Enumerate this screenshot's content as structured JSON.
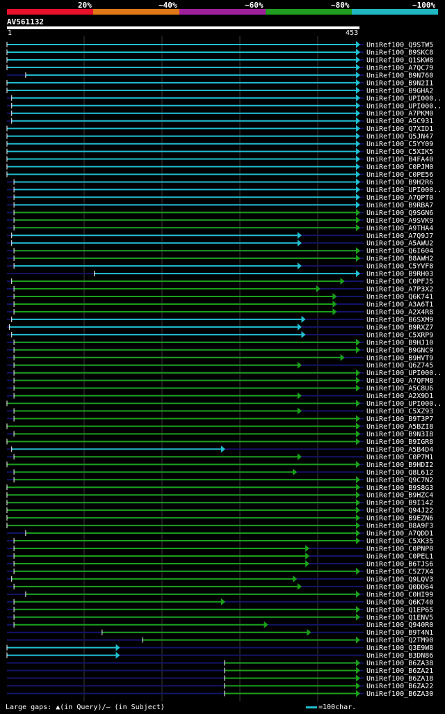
{
  "legend": {
    "labels": [
      "20%",
      "~40%",
      "~60%",
      "~80%",
      "~100%"
    ],
    "colors": [
      "#e8102a",
      "#e07818",
      "#a0209c",
      "#209c20",
      "#20b8c0"
    ]
  },
  "query": {
    "id": "AV561132",
    "start": "1",
    "end": "453",
    "length": 453
  },
  "footer": {
    "gaps_label": "Large gaps: ▲(in Query)/– (in Subject)",
    "scale_label": "=100char."
  },
  "colors": {
    "line": "#20c0d0",
    "cyan": "#20c0d0",
    "green": "#1aa01a",
    "background_line": "#14146a",
    "grid": "#3a3a3a"
  },
  "hits": [
    {
      "name": "UniRef100_Q9STW5",
      "s": 1,
      "e": 453,
      "c": "cyan"
    },
    {
      "name": "UniRef100_B9SKC8",
      "s": 1,
      "e": 453,
      "c": "cyan"
    },
    {
      "name": "UniRef100_Q1SKW8",
      "s": 1,
      "e": 453,
      "c": "cyan"
    },
    {
      "name": "UniRef100_A7QC79",
      "s": 1,
      "e": 453,
      "c": "cyan"
    },
    {
      "name": "UniRef100_B9N760",
      "s": 25,
      "e": 453,
      "c": "cyan"
    },
    {
      "name": "UniRef100_B9N2I1",
      "s": 1,
      "e": 453,
      "c": "cyan"
    },
    {
      "name": "UniRef100_B9GHA2",
      "s": 1,
      "e": 453,
      "c": "cyan"
    },
    {
      "name": "UniRef100_UPI000..",
      "s": 7,
      "e": 453,
      "c": "cyan"
    },
    {
      "name": "UniRef100_UPI000..",
      "s": 7,
      "e": 453,
      "c": "cyan"
    },
    {
      "name": "UniRef100_A7PKM0",
      "s": 7,
      "e": 453,
      "c": "cyan"
    },
    {
      "name": "UniRef100_A5C931",
      "s": 7,
      "e": 453,
      "c": "cyan"
    },
    {
      "name": "UniRef100_Q7XID1",
      "s": 1,
      "e": 453,
      "c": "cyan"
    },
    {
      "name": "UniRef100_Q5JN47",
      "s": 1,
      "e": 453,
      "c": "cyan"
    },
    {
      "name": "UniRef100_C5YY09",
      "s": 1,
      "e": 453,
      "c": "cyan"
    },
    {
      "name": "UniRef100_C5XIK5",
      "s": 1,
      "e": 453,
      "c": "cyan"
    },
    {
      "name": "UniRef100_B4FA40",
      "s": 1,
      "e": 453,
      "c": "cyan"
    },
    {
      "name": "UniRef100_C0PJM0",
      "s": 1,
      "e": 453,
      "c": "cyan"
    },
    {
      "name": "UniRef100_C0PE56",
      "s": 1,
      "e": 453,
      "c": "cyan"
    },
    {
      "name": "UniRef100_B9H2R6",
      "s": 10,
      "e": 453,
      "c": "cyan"
    },
    {
      "name": "UniRef100_UPI000..",
      "s": 10,
      "e": 453,
      "c": "cyan"
    },
    {
      "name": "UniRef100_A7QPT0",
      "s": 10,
      "e": 453,
      "c": "cyan"
    },
    {
      "name": "UniRef100_B9RBA7",
      "s": 10,
      "e": 453,
      "c": "cyan"
    },
    {
      "name": "UniRef100_Q9SGN6",
      "s": 10,
      "e": 453,
      "c": "green"
    },
    {
      "name": "UniRef100_A9SVK9",
      "s": 10,
      "e": 453,
      "c": "green"
    },
    {
      "name": "UniRef100_A9THA4",
      "s": 10,
      "e": 453,
      "c": "green"
    },
    {
      "name": "UniRef100_A7Q9J7",
      "s": 7,
      "e": 378,
      "c": "cyan"
    },
    {
      "name": "UniRef100_A5AWU2",
      "s": 7,
      "e": 378,
      "c": "cyan"
    },
    {
      "name": "UniRef100_Q6I604",
      "s": 10,
      "e": 453,
      "c": "green"
    },
    {
      "name": "UniRef100_B8AWH2",
      "s": 10,
      "e": 453,
      "c": "green"
    },
    {
      "name": "UniRef100_C5YVF8",
      "s": 10,
      "e": 378,
      "c": "cyan"
    },
    {
      "name": "UniRef100_B9RH03",
      "s": 113,
      "e": 453,
      "c": "cyan"
    },
    {
      "name": "UniRef100_C0PFJ5",
      "s": 7,
      "e": 433,
      "c": "green"
    },
    {
      "name": "UniRef100_A7P3X2",
      "s": 10,
      "e": 402,
      "c": "green"
    },
    {
      "name": "UniRef100_Q6K741",
      "s": 10,
      "e": 423,
      "c": "green"
    },
    {
      "name": "UniRef100_A3A6T1",
      "s": 10,
      "e": 423,
      "c": "green"
    },
    {
      "name": "UniRef100_A2X4R8",
      "s": 10,
      "e": 423,
      "c": "green"
    },
    {
      "name": "UniRef100_B6SXM9",
      "s": 7,
      "e": 383,
      "c": "cyan"
    },
    {
      "name": "UniRef100_B9RXZ7",
      "s": 4,
      "e": 378,
      "c": "cyan"
    },
    {
      "name": "UniRef100_C5XRP9",
      "s": 7,
      "e": 383,
      "c": "cyan"
    },
    {
      "name": "UniRef100_B9HJ10",
      "s": 10,
      "e": 453,
      "c": "green"
    },
    {
      "name": "UniRef100_B9GNC9",
      "s": 10,
      "e": 453,
      "c": "green"
    },
    {
      "name": "UniRef100_B9HVT9",
      "s": 10,
      "e": 433,
      "c": "green"
    },
    {
      "name": "UniRef100_Q6Z745",
      "s": 10,
      "e": 378,
      "c": "green"
    },
    {
      "name": "UniRef100_UPI000..",
      "s": 10,
      "e": 453,
      "c": "green"
    },
    {
      "name": "UniRef100_A7QFM8",
      "s": 10,
      "e": 453,
      "c": "green"
    },
    {
      "name": "UniRef100_A5C8U6",
      "s": 10,
      "e": 453,
      "c": "green"
    },
    {
      "name": "UniRef100_A2X9D1",
      "s": 10,
      "e": 378,
      "c": "green"
    },
    {
      "name": "UniRef100_UPI000..",
      "s": 1,
      "e": 453,
      "c": "green"
    },
    {
      "name": "UniRef100_C5XZ93",
      "s": 10,
      "e": 378,
      "c": "green"
    },
    {
      "name": "UniRef100_B9T3P7",
      "s": 10,
      "e": 453,
      "c": "green"
    },
    {
      "name": "UniRef100_A5BZI8",
      "s": 1,
      "e": 453,
      "c": "green"
    },
    {
      "name": "UniRef100_B9N3I8",
      "s": 10,
      "e": 453,
      "c": "green"
    },
    {
      "name": "UniRef100_B9IGR8",
      "s": 1,
      "e": 453,
      "c": "green"
    },
    {
      "name": "UniRef100_A5B4D4",
      "s": 7,
      "e": 280,
      "c": "cyan"
    },
    {
      "name": "UniRef100_C0P7M1",
      "s": 10,
      "e": 378,
      "c": "green"
    },
    {
      "name": "UniRef100_B9HDI2",
      "s": 1,
      "e": 453,
      "c": "green"
    },
    {
      "name": "UniRef100_Q8L612",
      "s": 10,
      "e": 372,
      "c": "green"
    },
    {
      "name": "UniRef100_Q9C7N2",
      "s": 10,
      "e": 453,
      "c": "green"
    },
    {
      "name": "UniRef100_B9S8G3",
      "s": 1,
      "e": 453,
      "c": "green"
    },
    {
      "name": "UniRef100_B9HZC4",
      "s": 1,
      "e": 453,
      "c": "green"
    },
    {
      "name": "UniRef100_B9I142",
      "s": 1,
      "e": 453,
      "c": "green"
    },
    {
      "name": "UniRef100_Q94J22",
      "s": 1,
      "e": 453,
      "c": "green"
    },
    {
      "name": "UniRef100_B9EZN6",
      "s": 1,
      "e": 453,
      "c": "green"
    },
    {
      "name": "UniRef100_B8A9F3",
      "s": 1,
      "e": 453,
      "c": "green"
    },
    {
      "name": "UniRef100_A7QDD1",
      "s": 25,
      "e": 453,
      "c": "green"
    },
    {
      "name": "UniRef100_C5XK35",
      "s": 10,
      "e": 453,
      "c": "green"
    },
    {
      "name": "UniRef100_C0PNP0",
      "s": 10,
      "e": 388,
      "c": "green"
    },
    {
      "name": "UniRef100_C0PEL1",
      "s": 10,
      "e": 388,
      "c": "green"
    },
    {
      "name": "UniRef100_B6TJS6",
      "s": 10,
      "e": 388,
      "c": "green"
    },
    {
      "name": "UniRef100_C5Z7X4",
      "s": 10,
      "e": 453,
      "c": "green"
    },
    {
      "name": "UniRef100_Q9LQV3",
      "s": 7,
      "e": 372,
      "c": "green"
    },
    {
      "name": "UniRef100_Q0DD64",
      "s": 10,
      "e": 378,
      "c": "green"
    },
    {
      "name": "UniRef100_C0HI99",
      "s": 25,
      "e": 453,
      "c": "green"
    },
    {
      "name": "UniRef100_Q6K740",
      "s": 10,
      "e": 280,
      "c": "green"
    },
    {
      "name": "UniRef100_Q1EP65",
      "s": 10,
      "e": 453,
      "c": "green"
    },
    {
      "name": "UniRef100_Q1ENV5",
      "s": 10,
      "e": 453,
      "c": "green"
    },
    {
      "name": "UniRef100_Q940R0",
      "s": 10,
      "e": 335,
      "c": "green"
    },
    {
      "name": "UniRef100_B9T4N1",
      "s": 123,
      "e": 390,
      "c": "green"
    },
    {
      "name": "UniRef100_Q2TM90",
      "s": 175,
      "e": 453,
      "c": "green"
    },
    {
      "name": "UniRef100_Q3E9W8",
      "s": 1,
      "e": 145,
      "c": "cyan"
    },
    {
      "name": "UniRef100_B3DN86",
      "s": 1,
      "e": 145,
      "c": "cyan"
    },
    {
      "name": "UniRef100_B6ZA38",
      "s": 280,
      "e": 453,
      "c": "green"
    },
    {
      "name": "UniRef100_B6ZA21",
      "s": 280,
      "e": 453,
      "c": "green"
    },
    {
      "name": "UniRef100_B6ZA18",
      "s": 280,
      "e": 453,
      "c": "green"
    },
    {
      "name": "UniRef100_B6ZA22",
      "s": 280,
      "e": 453,
      "c": "green"
    },
    {
      "name": "UniRef100_B6ZA30",
      "s": 280,
      "e": 453,
      "c": "green"
    }
  ]
}
